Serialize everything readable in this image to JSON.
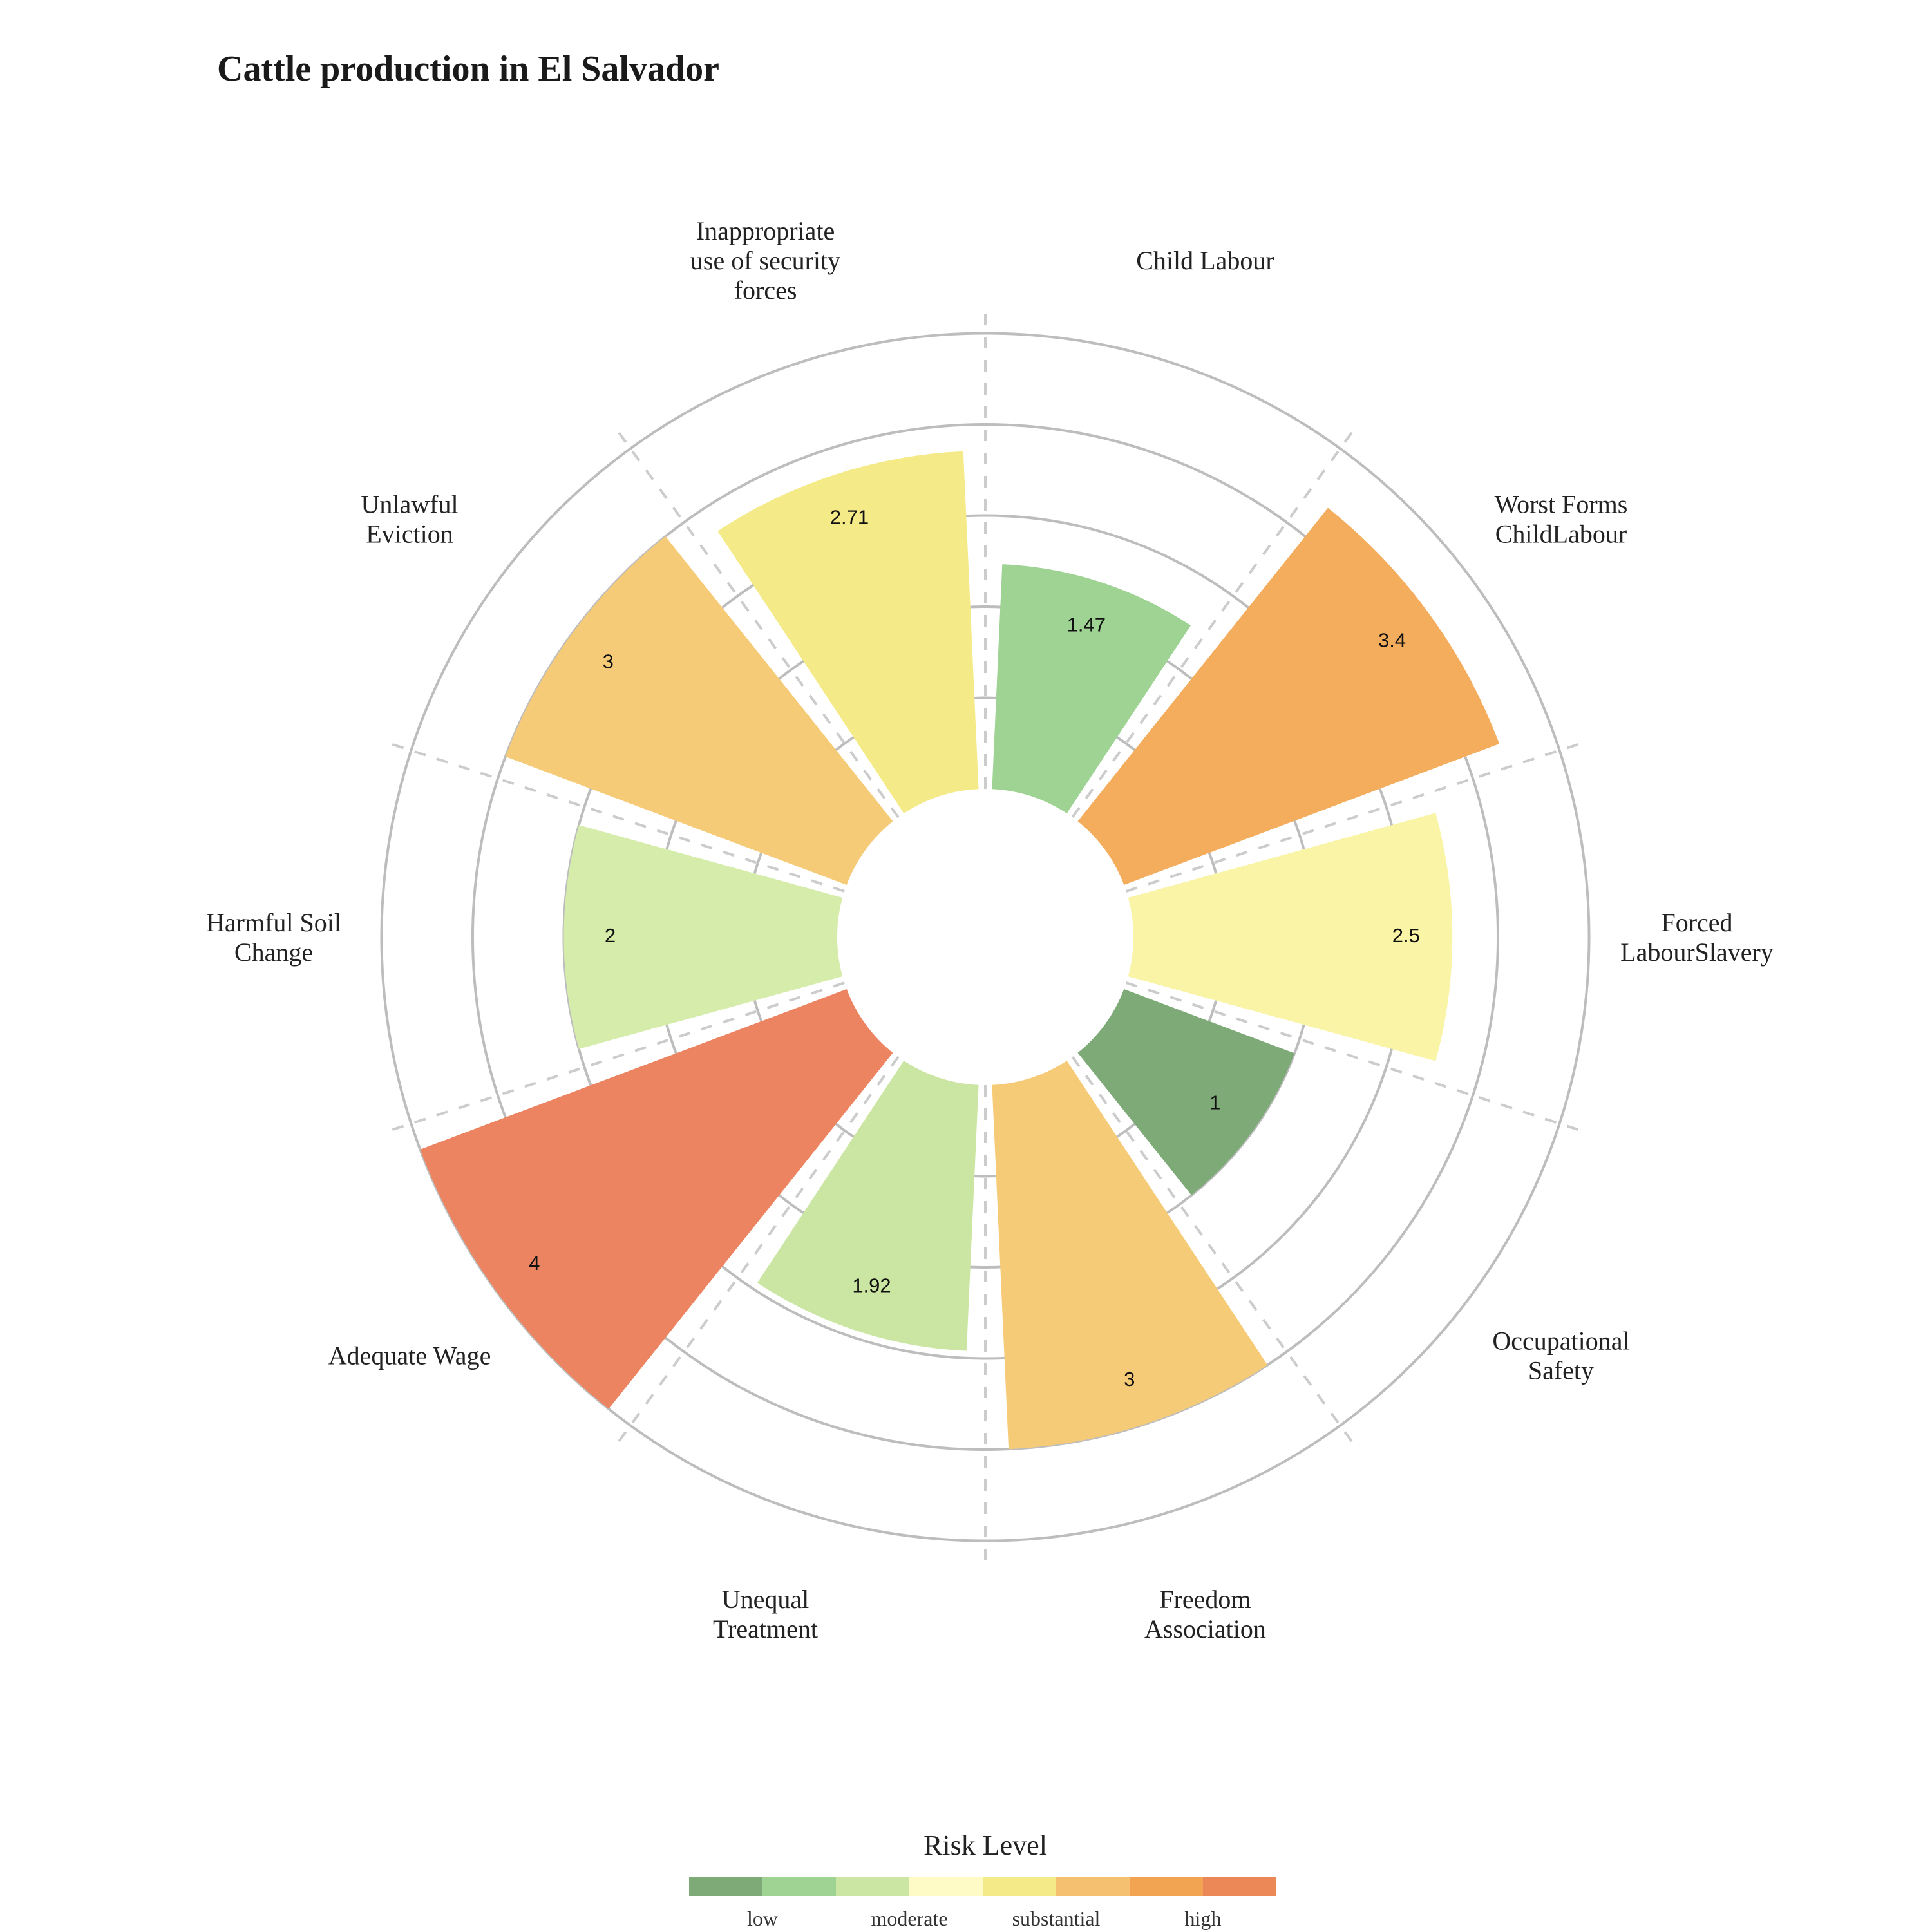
{
  "chart_data": {
    "type": "polar-bar",
    "title": "Cattle production in El Salvador",
    "categories": [
      "Child Labour",
      "Worst Forms ChildLabour",
      "Forced LabourSlavery",
      "Occupational Safety",
      "Freedom Association",
      "Unequal Treatment",
      "Adequate Wage",
      "Harmful Soil Change",
      "Unlawful Eviction",
      "Inappropriate use of security forces"
    ],
    "category_label_lines": [
      [
        "Child Labour"
      ],
      [
        "Worst Forms",
        "ChildLabour"
      ],
      [
        "Forced",
        "LabourSlavery"
      ],
      [
        "Occupational",
        "Safety"
      ],
      [
        "Freedom",
        "Association"
      ],
      [
        "Unequal",
        "Treatment"
      ],
      [
        "Adequate Wage"
      ],
      [
        "Harmful Soil",
        "Change"
      ],
      [
        "Unlawful",
        "Eviction"
      ],
      [
        "Inappropriate",
        "use of security",
        "forces"
      ]
    ],
    "values": [
      1.47,
      3.4,
      2.5,
      1,
      3,
      1.92,
      4,
      2,
      3,
      2.71
    ],
    "value_labels": [
      "1.47",
      "3.4",
      "2.5",
      "1",
      "3",
      "1.92",
      "4",
      "2",
      "3",
      "2.71"
    ],
    "bar_colors": [
      "#9ed393",
      "#f3ad5d",
      "#faf4a6",
      "#7eaa78",
      "#f5cb77",
      "#cbe6a2",
      "#ec8461",
      "#d6ecab",
      "#f5cb77",
      "#f5ea88"
    ],
    "radial_range": [
      -1,
      4.3
    ],
    "radial_gridlines": [
      0,
      1,
      2,
      3,
      4
    ],
    "grid": true,
    "legend": {
      "title": "Risk Level",
      "position": "bottom",
      "colors": [
        "#7eaa78",
        "#9ed393",
        "#cbe6a2",
        "#fffbc7",
        "#f5ea88",
        "#f5c170",
        "#f2a453",
        "#ec8757"
      ],
      "labels": [
        "low",
        "moderate",
        "substantial",
        "high"
      ]
    }
  }
}
